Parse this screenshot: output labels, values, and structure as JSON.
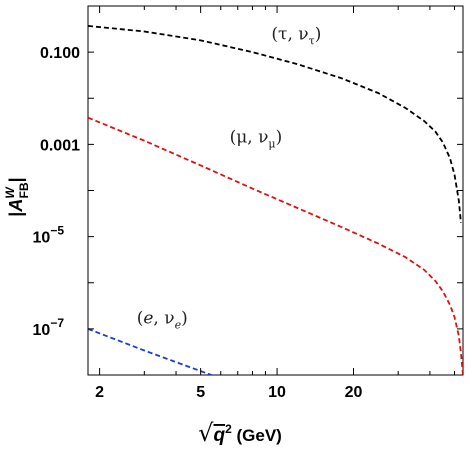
{
  "chart_data": {
    "type": "line",
    "x_scale": "log",
    "y_scale": "log",
    "xlim": [
      1.8,
      54
    ],
    "ylim": [
      1e-08,
      1.0
    ],
    "x_ticks": [
      {
        "value": 2,
        "label": "2"
      },
      {
        "value": 5,
        "label": "5"
      },
      {
        "value": 10,
        "label": "10"
      },
      {
        "value": 20,
        "label": "20"
      }
    ],
    "y_ticks": [
      {
        "value": 0.1,
        "label": "0.100",
        "sup": ""
      },
      {
        "value": 0.001,
        "label": "0.001",
        "sup": ""
      },
      {
        "value": 1e-05,
        "label": "10",
        "sup": "−5"
      },
      {
        "value": 1e-07,
        "label": "10",
        "sup": "−7"
      }
    ],
    "xlabel": {
      "root_var": "q",
      "root_exp": "2",
      "unit": " (GeV)"
    },
    "ylabel": {
      "prefix": "|",
      "base": "A",
      "sup": "W",
      "sub": "FB",
      "suffix": "|"
    },
    "grid": false,
    "series": [
      {
        "color": "#000000",
        "dash": "dashed",
        "x": [
          1.8,
          3,
          5,
          8,
          12,
          18,
          25,
          32,
          38,
          42,
          45,
          48,
          50,
          52,
          53
        ],
        "y": [
          0.37,
          0.28,
          0.18,
          0.1,
          0.055,
          0.027,
          0.013,
          0.0062,
          0.0032,
          0.0019,
          0.0011,
          0.0005,
          0.00022,
          6e-05,
          2e-05
        ]
      },
      {
        "color": "#dd1111",
        "dash": "dashed",
        "x": [
          1.8,
          3,
          5,
          8,
          12,
          18,
          25,
          32,
          38,
          42,
          45,
          48,
          50,
          52,
          53,
          54
        ],
        "y": [
          0.0038,
          0.0012,
          0.00035,
          0.00011,
          4.2e-05,
          1.6e-05,
          7.1e-06,
          3.6e-06,
          1.9e-06,
          1.1e-06,
          6.5e-07,
          3.3e-07,
          1.8e-07,
          7e-08,
          3e-08,
          1e-08
        ]
      },
      {
        "color": "#1f3fd0",
        "dash": "dashed",
        "x": [
          1.8,
          3,
          4.5,
          6.1
        ],
        "y": [
          1e-07,
          3.4e-08,
          1.5e-08,
          8.2e-09
        ]
      }
    ],
    "annotations": [
      {
        "x": 9.5,
        "y": 0.19,
        "greek": "τ",
        "sub": "τ",
        "italic": false
      },
      {
        "x": 6.5,
        "y": 0.0011,
        "greek": "μ",
        "sub": "μ",
        "italic": false
      },
      {
        "x": 2.8,
        "y": 1.3e-07,
        "greek": "e",
        "sub": "e",
        "italic": true
      }
    ],
    "annotation_nu": "ν"
  }
}
